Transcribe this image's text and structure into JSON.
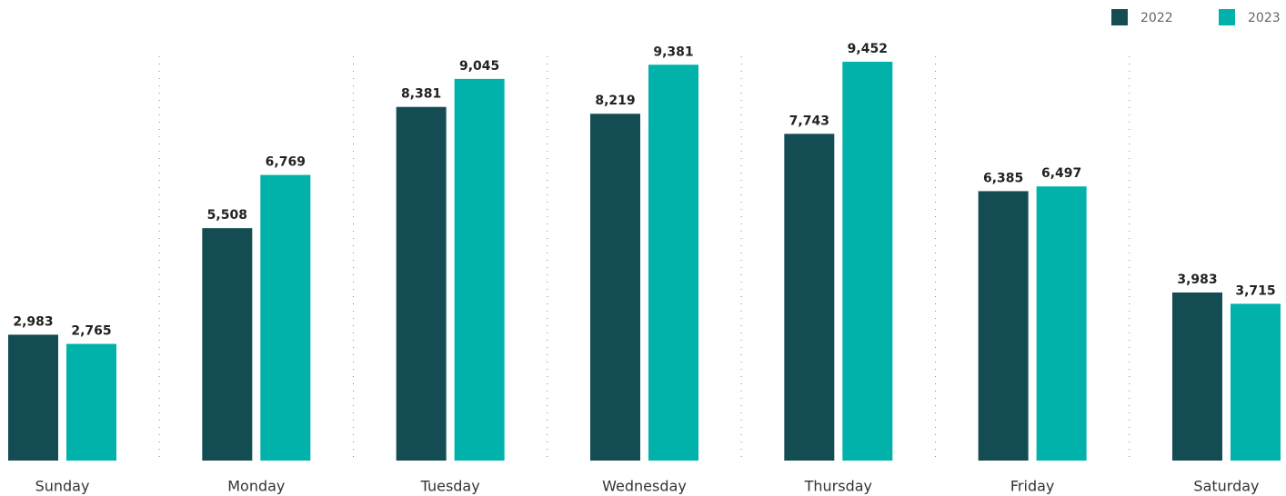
{
  "chart_data": {
    "type": "bar",
    "categories": [
      "Sunday",
      "Monday",
      "Tuesday",
      "Wednesday",
      "Thursday",
      "Friday",
      "Saturday"
    ],
    "series": [
      {
        "name": "2022",
        "color": "#134d53",
        "values": [
          2983,
          5508,
          8381,
          8219,
          7743,
          6385,
          3983
        ],
        "value_labels": [
          "2,983",
          "5,508",
          "8,381",
          "8,219",
          "7,743",
          "6,385",
          "3,983"
        ]
      },
      {
        "name": "2023",
        "color": "#00b2a9",
        "values": [
          2765,
          6769,
          9045,
          9381,
          9452,
          6497,
          3715
        ],
        "value_labels": [
          "2,765",
          "6,769",
          "9,045",
          "9,381",
          "9,452",
          "6,497",
          "3,715"
        ]
      }
    ],
    "ylim": [
      0,
      10000
    ],
    "legend": "top-right"
  }
}
